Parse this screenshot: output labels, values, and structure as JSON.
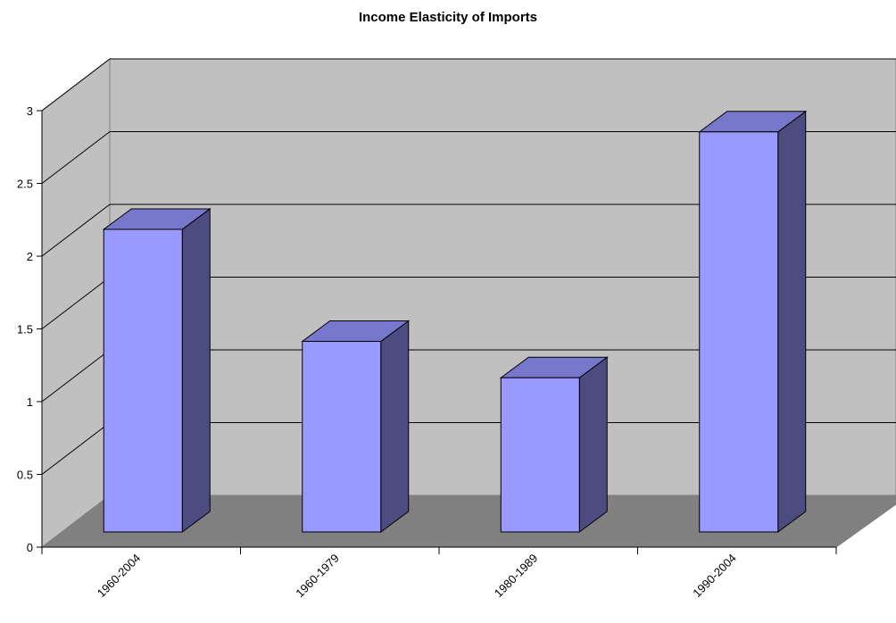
{
  "chart_data": {
    "type": "bar",
    "title": "Income Elasticity of Imports",
    "xlabel": "",
    "ylabel": "",
    "categories": [
      "1960-2004",
      "1960-1979",
      "1980-1989",
      "1990-2004"
    ],
    "values": [
      2.08,
      1.31,
      1.06,
      2.75
    ],
    "ylim": [
      0,
      3
    ],
    "yticks": [
      "0",
      "0.5",
      "1",
      "1.5",
      "2",
      "2.5",
      "3"
    ],
    "grid": true,
    "legend": "none",
    "three_d": true,
    "colors": {
      "bar_front": "#9999ff",
      "bar_top": "#7777cc",
      "bar_side": "#4c4c80",
      "back_wall": "#c0c0c0",
      "side_wall": "#c0c0c0",
      "floor": "#808080"
    }
  }
}
